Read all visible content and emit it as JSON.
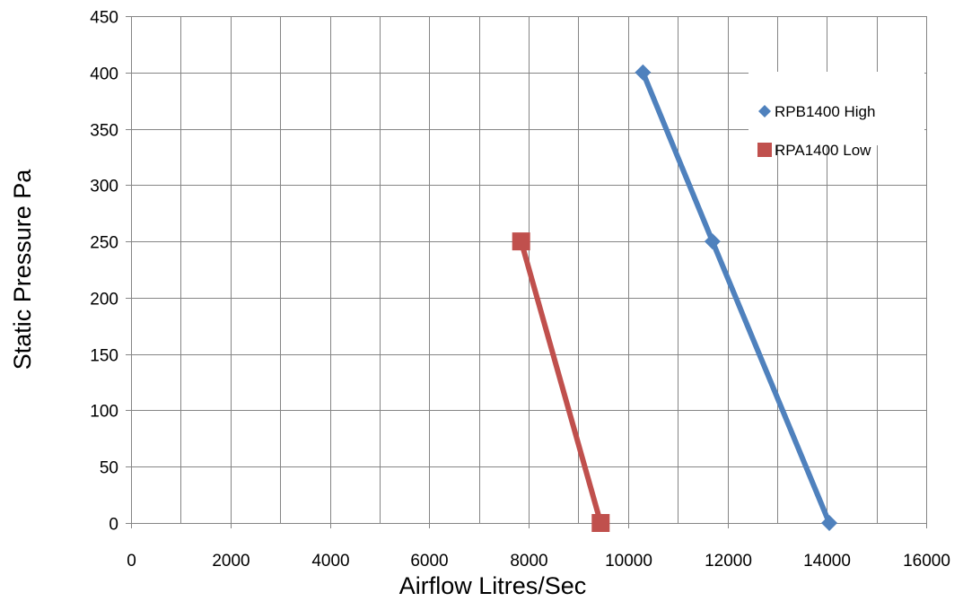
{
  "chart_data": {
    "type": "scatter",
    "title": "",
    "xlabel": "Airflow Litres/Sec",
    "ylabel": "Static Pressure Pa",
    "xlim": [
      0,
      16000
    ],
    "ylim": [
      0,
      450
    ],
    "x_ticks": [
      "0",
      "2000",
      "4000",
      "6000",
      "8000",
      "10000",
      "12000",
      "14000",
      "16000"
    ],
    "y_ticks": [
      "0",
      "50",
      "100",
      "150",
      "200",
      "250",
      "300",
      "350",
      "400",
      "450"
    ],
    "x_tick_values": [
      0,
      2000,
      4000,
      6000,
      8000,
      10000,
      12000,
      14000,
      16000
    ],
    "y_tick_values": [
      0,
      50,
      100,
      150,
      200,
      250,
      300,
      350,
      400,
      450
    ],
    "x_minor_step": 1000,
    "grid": true,
    "legend_position": "top-right",
    "series": [
      {
        "name": "RPB1400 High",
        "marker": "diamond",
        "color": "#4F81BD",
        "points": [
          {
            "x": 10300,
            "y": 400
          },
          {
            "x": 11700,
            "y": 250
          },
          {
            "x": 14050,
            "y": 0
          }
        ]
      },
      {
        "name": "RPA1400 Low",
        "marker": "square",
        "color": "#C0504D",
        "points": [
          {
            "x": 7850,
            "y": 250
          },
          {
            "x": 9450,
            "y": 0
          }
        ]
      }
    ]
  }
}
